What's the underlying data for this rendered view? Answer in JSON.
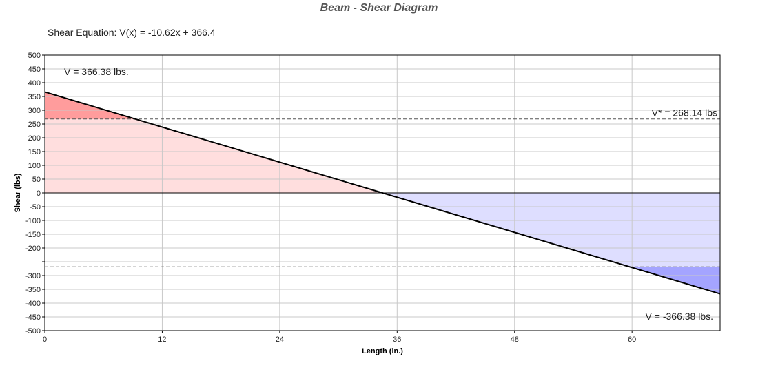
{
  "chart_data": {
    "type": "line",
    "title": "Beam - Shear Diagram",
    "equation_label": "Shear Equation:  V(x) = -10.62x + 366.4",
    "xlabel": "Length (in.)",
    "ylabel": "Shear (lbs)",
    "xlim": [
      0,
      69
    ],
    "ylim": [
      -500,
      500
    ],
    "x_ticks": [
      0,
      12,
      24,
      36,
      48,
      60
    ],
    "y_tick_labels": [
      "500",
      "450",
      "400",
      "350",
      "300",
      "250",
      "200",
      "150",
      "100",
      "50",
      "0",
      "-50",
      "-100",
      "-150",
      "-200",
      "",
      "-300",
      "-350",
      "-400",
      "-450",
      "-500"
    ],
    "y_tick_values": [
      500,
      450,
      400,
      350,
      300,
      250,
      200,
      150,
      100,
      50,
      0,
      -50,
      -100,
      -150,
      -200,
      -250,
      -300,
      -350,
      -400,
      -450,
      -500
    ],
    "series": [
      {
        "x": [
          0,
          69
        ],
        "y": [
          366.38,
          -366.38
        ]
      }
    ],
    "reference_lines": [
      {
        "y": 268.14,
        "label": "V* = 268.14 lbs"
      },
      {
        "y": -268.14,
        "label": ""
      }
    ],
    "annotations": [
      {
        "text": "V = 366.38 lbs.",
        "position": "top-left"
      },
      {
        "text": "V = -366.38 lbs.",
        "position": "bottom-right"
      }
    ],
    "colors": {
      "positive_fill": "#ffdede",
      "positive_exceed_fill": "#ff9c9c",
      "negative_fill": "#dedeff",
      "negative_exceed_fill": "#a4a4ff",
      "line": "#000000",
      "grid": "#c8c8c8"
    },
    "grid": true
  }
}
